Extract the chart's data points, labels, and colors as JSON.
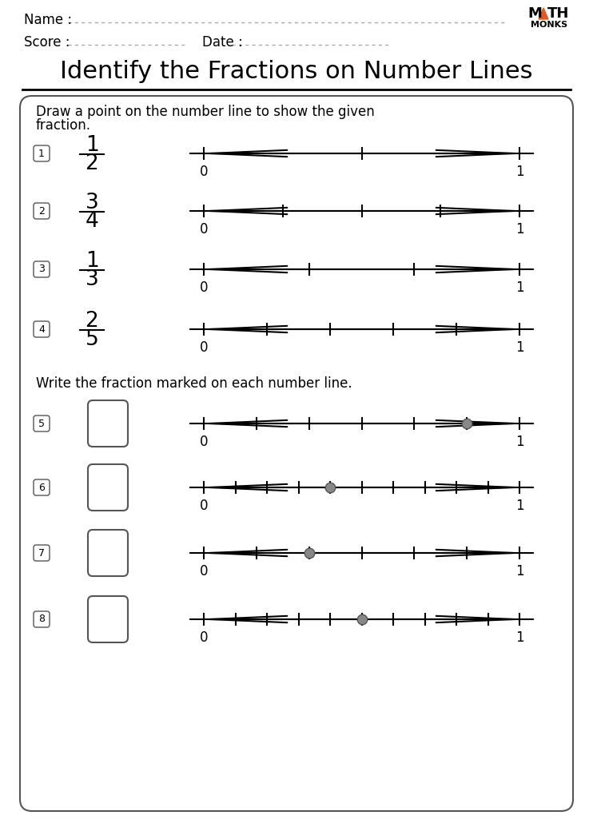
{
  "title": "Identify the Fractions on Number Lines",
  "name_label": "Name :",
  "score_label": "Score :",
  "date_label": "Date :",
  "section1_instruction_line1": "Draw a point on the number line to show the given",
  "section1_instruction_line2": "fraction.",
  "section2_instruction": "Write the fraction marked on each number line.",
  "fractions_part1": [
    {
      "num": "1",
      "numerator": "1",
      "denominator": "2",
      "ticks": 2
    },
    {
      "num": "2",
      "numerator": "3",
      "denominator": "4",
      "ticks": 4
    },
    {
      "num": "3",
      "numerator": "1",
      "denominator": "3",
      "ticks": 3
    },
    {
      "num": "4",
      "numerator": "2",
      "denominator": "5",
      "ticks": 5
    }
  ],
  "fractions_part2": [
    {
      "num": "5",
      "ticks": 6,
      "dot_tick": 5
    },
    {
      "num": "6",
      "ticks": 10,
      "dot_tick": 4
    },
    {
      "num": "7",
      "ticks": 6,
      "dot_tick": 2
    },
    {
      "num": "8",
      "ticks": 10,
      "dot_tick": 5
    }
  ],
  "bg_color": "#ffffff",
  "text_color": "#000000",
  "line_color": "#000000",
  "dot_color": "#888888",
  "dot_edge_color": "#555555",
  "box_border_color": "#555555",
  "logo_triangle_color": "#e05a20",
  "dash_color": "#aaaaaa",
  "content_box_edge": "#555555",
  "title_underline_color": "#000000"
}
